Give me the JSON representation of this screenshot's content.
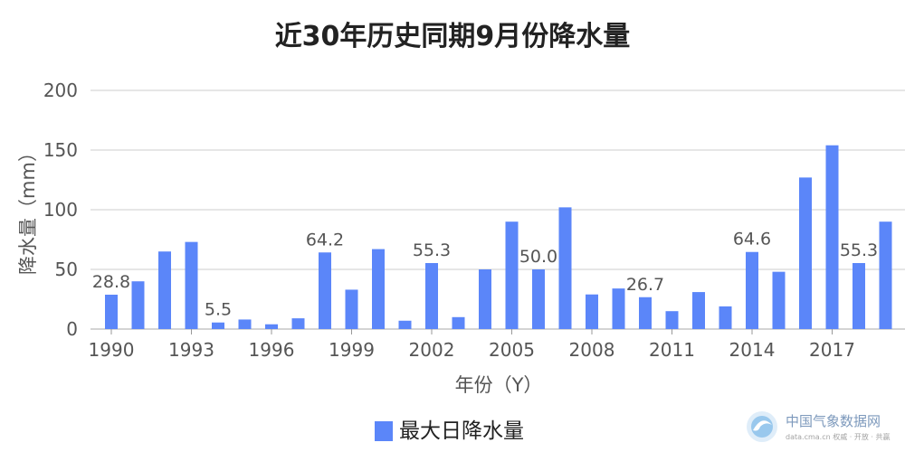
{
  "chart_data": {
    "type": "bar",
    "title": "近30年历史同期9月份降水量",
    "xlabel": "年份（Y）",
    "ylabel": "降水量（mm）",
    "ylim": [
      0,
      200
    ],
    "yticks": [
      0,
      50,
      100,
      150,
      200
    ],
    "xticks": [
      "1990",
      "1993",
      "1996",
      "1999",
      "2002",
      "2005",
      "2008",
      "2011",
      "2014",
      "2017"
    ],
    "grid": true,
    "legend_position": "bottom-center",
    "categories": [
      1990,
      1991,
      1992,
      1993,
      1994,
      1995,
      1996,
      1997,
      1998,
      1999,
      2000,
      2001,
      2002,
      2003,
      2004,
      2005,
      2006,
      2007,
      2008,
      2009,
      2010,
      2011,
      2012,
      2013,
      2014,
      2015,
      2016,
      2017,
      2018,
      2019
    ],
    "series": [
      {
        "name": "最大日降水量",
        "color": "#5b86f9",
        "values": [
          28.8,
          40,
          65,
          73,
          5.5,
          8,
          4,
          9,
          64.2,
          33,
          67,
          7,
          55.3,
          10,
          50,
          90,
          50.0,
          102,
          29,
          34,
          26.7,
          15,
          31,
          19,
          64.6,
          48,
          127,
          154,
          55.3,
          90
        ],
        "data_labels": [
          {
            "year": 1990,
            "text": "28.8"
          },
          {
            "year": 1994,
            "text": "5.5"
          },
          {
            "year": 1998,
            "text": "64.2"
          },
          {
            "year": 2002,
            "text": "55.3"
          },
          {
            "year": 2006,
            "text": "50.0"
          },
          {
            "year": 2010,
            "text": "26.7"
          },
          {
            "year": 2014,
            "text": "64.6"
          },
          {
            "year": 2018,
            "text": "55.3"
          }
        ]
      }
    ]
  },
  "watermark": {
    "text": "中国气象数据网",
    "subtext": "data.cma.cn 权威 · 开放 · 共赢",
    "icon": "cma-logo-icon"
  }
}
